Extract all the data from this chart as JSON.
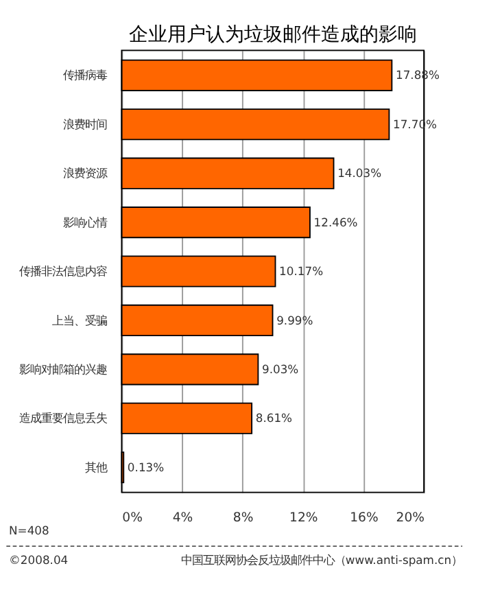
{
  "chart_data": {
    "type": "bar",
    "orientation": "horizontal",
    "title": "企业用户认为垃圾邮件造成的影响",
    "categories": [
      "传播病毒",
      "浪费时间",
      "浪费资源",
      "影响心情",
      "传播非法信息内容",
      "上当、受骗",
      "影响对邮箱的兴趣",
      "造成重要信息丢失",
      "其他"
    ],
    "values": [
      17.88,
      17.7,
      14.03,
      12.46,
      10.17,
      9.99,
      9.03,
      8.61,
      0.13
    ],
    "value_labels": [
      "17.88%",
      "17.70%",
      "14.03%",
      "12.46%",
      "10.17%",
      "9.99%",
      "9.03%",
      "8.61%",
      "0.13%"
    ],
    "color": "#ff6600",
    "xlim": [
      0,
      20
    ],
    "xticks": [
      {
        "value": 0,
        "label": "0%"
      },
      {
        "value": 4,
        "label": "4%"
      },
      {
        "value": 8,
        "label": "8%"
      },
      {
        "value": 12,
        "label": "12%"
      },
      {
        "value": 16,
        "label": "16%"
      },
      {
        "value": 20,
        "label": "20%"
      }
    ],
    "grid": "x",
    "annotations": [
      "N=408",
      "©2008.04",
      "中国互联网协会反垃圾邮件中心（www.anti-spam.cn）"
    ]
  }
}
